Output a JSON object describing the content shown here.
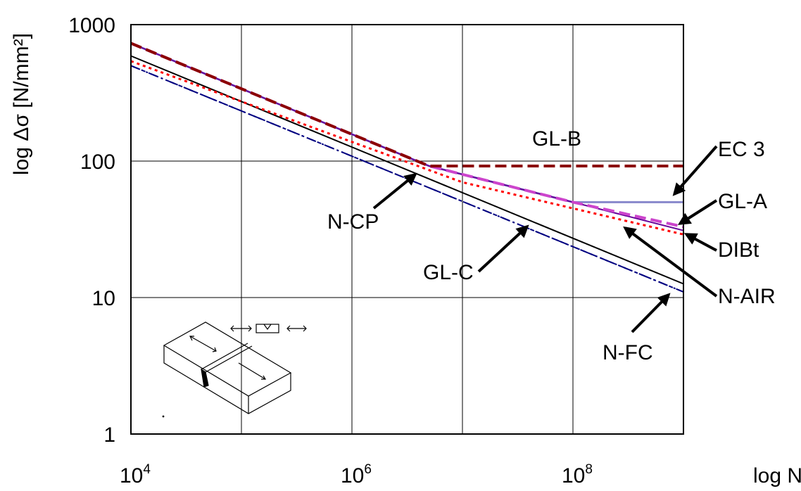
{
  "chart_data": {
    "type": "line",
    "xlabel": "log N",
    "ylabel": "log Δσ [N/mm²]",
    "x_scale": "log",
    "y_scale": "log",
    "xlim": [
      10000,
      1000000000
    ],
    "ylim": [
      1,
      1000
    ],
    "grid": true,
    "x_ticks": [
      {
        "value": 10000,
        "base": "10",
        "exp": "4"
      },
      {
        "value": 1000000,
        "base": "10",
        "exp": "6"
      },
      {
        "value": 100000000,
        "base": "10",
        "exp": "8"
      }
    ],
    "y_ticks": [
      {
        "value": 1,
        "label": "1"
      },
      {
        "value": 10,
        "label": "10"
      },
      {
        "value": 100,
        "label": "100"
      },
      {
        "value": 1000,
        "label": "1000"
      }
    ],
    "series": [
      {
        "name": "GL-B",
        "color": "#8b0000",
        "style": "dashed",
        "points": [
          [
            10000,
            730
          ],
          [
            5000000,
            92
          ],
          [
            1000000000,
            92
          ]
        ]
      },
      {
        "name": "EC 3",
        "color": "#8888cc",
        "style": "solid",
        "points": [
          [
            10000,
            730
          ],
          [
            5000000,
            92
          ],
          [
            100000000,
            50
          ],
          [
            1000000000,
            50
          ]
        ]
      },
      {
        "name": "GL-A",
        "color": "#cc44cc",
        "style": "dashed",
        "points": [
          [
            10000,
            730
          ],
          [
            5000000,
            92
          ],
          [
            100000000,
            50
          ],
          [
            1000000000,
            33
          ]
        ]
      },
      {
        "name": "DIBt",
        "color": "#660099",
        "style": "solid",
        "points": [
          [
            10000,
            730
          ],
          [
            5000000,
            92
          ],
          [
            100000000,
            50
          ],
          [
            1000000000,
            31
          ]
        ]
      },
      {
        "name": "N-AIR",
        "color": "#ff0000",
        "style": "dotted",
        "points": [
          [
            10000,
            540
          ],
          [
            10000000,
            70
          ],
          [
            1000000000,
            29
          ]
        ]
      },
      {
        "name": "N-CP",
        "color": "#000000",
        "style": "solid",
        "points": [
          [
            10000,
            590
          ],
          [
            1000000000,
            12.6
          ]
        ]
      },
      {
        "name": "GL-C",
        "color": "#000080",
        "style": "dash-dot",
        "points": [
          [
            10000,
            500
          ],
          [
            1000000000,
            11
          ]
        ]
      },
      {
        "name": "N-FC",
        "color": "#000080",
        "style": "dash-dot-dot",
        "points": [
          [
            10000,
            500
          ],
          [
            1000000000,
            11
          ]
        ]
      }
    ],
    "annotations": [
      {
        "text": "GL-B"
      },
      {
        "text": "EC 3"
      },
      {
        "text": "GL-A"
      },
      {
        "text": "DIBt"
      },
      {
        "text": "N-AIR"
      },
      {
        "text": "N-FC"
      },
      {
        "text": "N-CP"
      },
      {
        "text": "GL-C"
      }
    ]
  }
}
